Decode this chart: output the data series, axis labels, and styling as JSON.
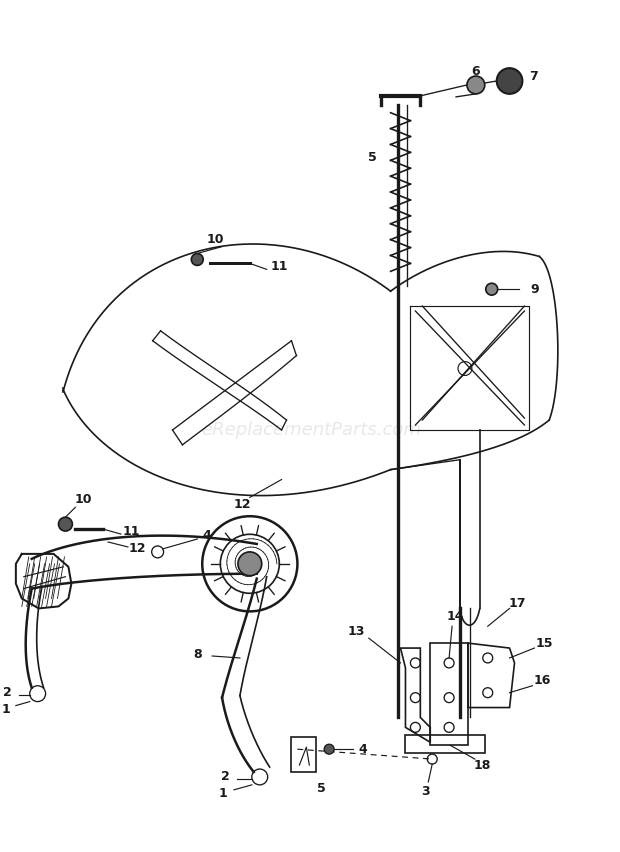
{
  "bg_color": "#ffffff",
  "line_color": "#1a1a1a",
  "watermark": "eReplacementParts.com",
  "watermark_color": "#cccccc"
}
